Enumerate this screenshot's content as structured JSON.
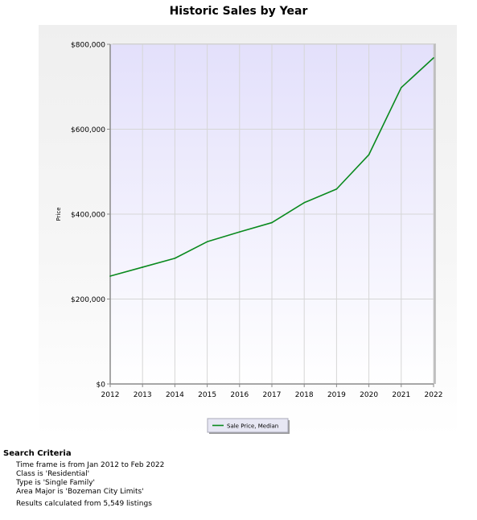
{
  "chart_data": {
    "type": "line",
    "title": "Historic Sales by Year",
    "xlabel": "",
    "ylabel": "Price",
    "x": [
      "2012",
      "2013",
      "2014",
      "2015",
      "2016",
      "2017",
      "2018",
      "2019",
      "2020",
      "2021",
      "2022"
    ],
    "ylim": [
      0,
      800000
    ],
    "yticks": [
      0,
      200000,
      400000,
      600000,
      800000
    ],
    "ytick_labels": [
      "$0",
      "$200,000",
      "$400,000",
      "$600,000",
      "$800,000"
    ],
    "grid": true,
    "legend_position": "bottom",
    "series": [
      {
        "name": "Sale Price, Median",
        "color": "#0a8a1e",
        "values": [
          254000,
          275000,
          296000,
          335000,
          358000,
          380000,
          427000,
          459000,
          540000,
          698000,
          768000
        ]
      }
    ]
  },
  "colors": {
    "plot_top": "#e3e0fb",
    "plot_bottom": "#ffffff",
    "grid": "#d6d6d6",
    "legend_bg": "#e7e7f4"
  },
  "criteria": {
    "title": "Search Criteria",
    "lines": [
      "Time frame is from Jan 2012 to Feb 2022",
      "Class is 'Residential'",
      "Type is 'Single Family'",
      "Area Major is 'Bozeman City Limits'"
    ],
    "results": "Results calculated from 5,549 listings"
  }
}
